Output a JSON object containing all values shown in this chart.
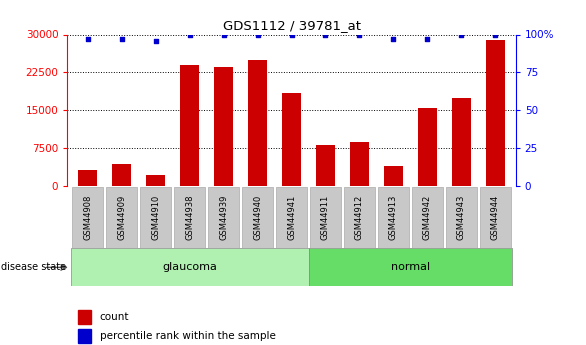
{
  "title": "GDS1112 / 39781_at",
  "samples": [
    "GSM44908",
    "GSM44909",
    "GSM44910",
    "GSM44938",
    "GSM44939",
    "GSM44940",
    "GSM44941",
    "GSM44911",
    "GSM44912",
    "GSM44913",
    "GSM44942",
    "GSM44943",
    "GSM44944"
  ],
  "counts": [
    3200,
    4500,
    2200,
    24000,
    23500,
    25000,
    18500,
    8200,
    8700,
    4000,
    15500,
    17500,
    29000
  ],
  "percentiles": [
    97,
    97,
    96,
    100,
    100,
    100,
    100,
    100,
    100,
    97,
    97,
    100,
    100
  ],
  "groups": [
    "glaucoma",
    "glaucoma",
    "glaucoma",
    "glaucoma",
    "glaucoma",
    "glaucoma",
    "glaucoma",
    "normal",
    "normal",
    "normal",
    "normal",
    "normal",
    "normal"
  ],
  "glaucoma_color": "#b0f0b0",
  "normal_color": "#66dd66",
  "bar_color": "#cc0000",
  "percentile_color": "#0000cc",
  "ylim_left": [
    0,
    30000
  ],
  "ylim_right": [
    0,
    100
  ],
  "yticks_left": [
    0,
    7500,
    15000,
    22500,
    30000
  ],
  "yticks_right": [
    0,
    25,
    50,
    75,
    100
  ],
  "xlabel_gray": "#c8c8c8",
  "background_color": "#ffffff"
}
